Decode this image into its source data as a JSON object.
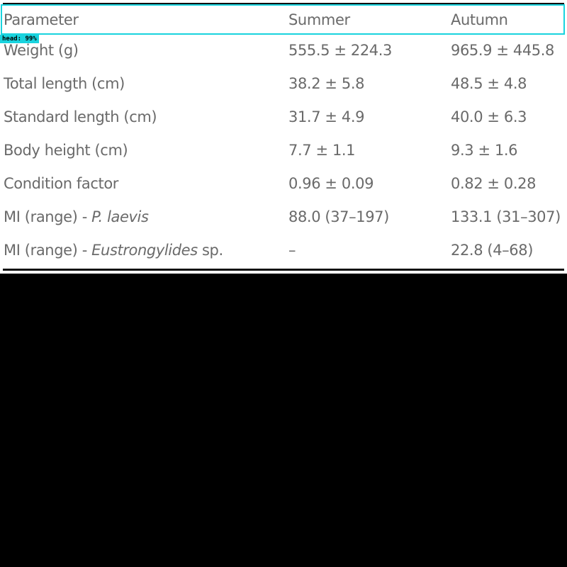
{
  "table": {
    "headers": [
      "Parameter",
      "Summer",
      "Autumn"
    ],
    "rows": [
      {
        "parameter": "Weight (g)",
        "summer": "555.5 ± 224.3",
        "autumn": "965.9 ± 445.8"
      },
      {
        "parameter": "Total length (cm)",
        "summer": "38.2 ± 5.8",
        "autumn": "48.5 ± 4.8"
      },
      {
        "parameter": "Standard length (cm)",
        "summer": "31.7 ± 4.9",
        "autumn": "40.0 ± 6.3"
      },
      {
        "parameter": "Body height (cm)",
        "summer": "7.7 ± 1.1",
        "autumn": "9.3 ± 1.6"
      },
      {
        "parameter": "Condition factor",
        "summer": "0.96 ± 0.09",
        "autumn": "0.82 ± 0.28"
      },
      {
        "parameter_prefix": "MI (range) - ",
        "parameter_italic": "P. laevis",
        "parameter_suffix": "",
        "summer": "88.0 (37–197)",
        "autumn": "133.1 (31–307)"
      },
      {
        "parameter_prefix": "MI (range) - ",
        "parameter_italic": "Eustrongylides",
        "parameter_suffix": " sp.",
        "summer": "–",
        "autumn": "22.8 (4–68)"
      }
    ]
  },
  "detection": {
    "label": "head: 99%",
    "color": "#19d3de"
  }
}
